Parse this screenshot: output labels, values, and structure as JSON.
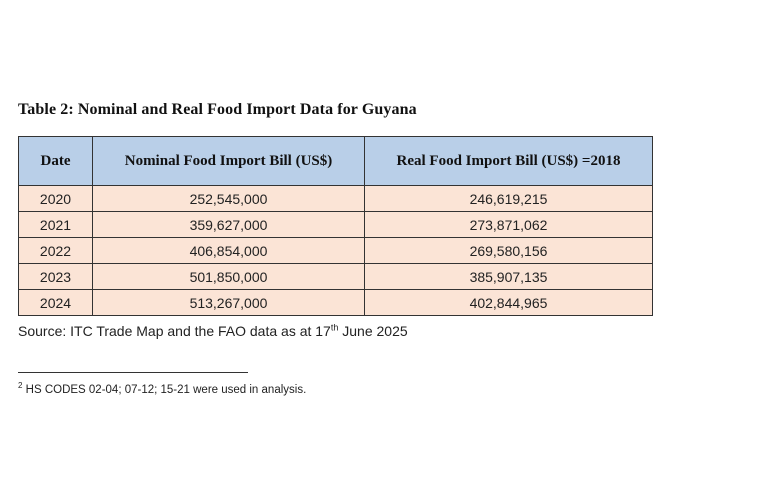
{
  "title": "Table 2: Nominal and Real Food Import Data for Guyana",
  "table": {
    "headers": [
      "Date",
      "Nominal Food Import Bill (US$)",
      "Real Food Import Bill (US$) =2018"
    ],
    "rows": [
      [
        "2020",
        "252,545,000",
        "246,619,215"
      ],
      [
        "2021",
        "359,627,000",
        "273,871,062"
      ],
      [
        "2022",
        "406,854,000",
        "269,580,156"
      ],
      [
        "2023",
        "501,850,000",
        "385,907,135"
      ],
      [
        "2024",
        "513,267,000",
        "402,844,965"
      ]
    ],
    "header_color": "#b9cfe8",
    "row_color": "#fbe4d6"
  },
  "source": {
    "prefix": "Source: ITC Trade Map and the FAO data as at 17",
    "superscript": "th",
    "suffix": " June 2025"
  },
  "footnote": {
    "marker": "2",
    "text": " HS CODES 02-04; 07-12; 15-21 were used in analysis."
  }
}
